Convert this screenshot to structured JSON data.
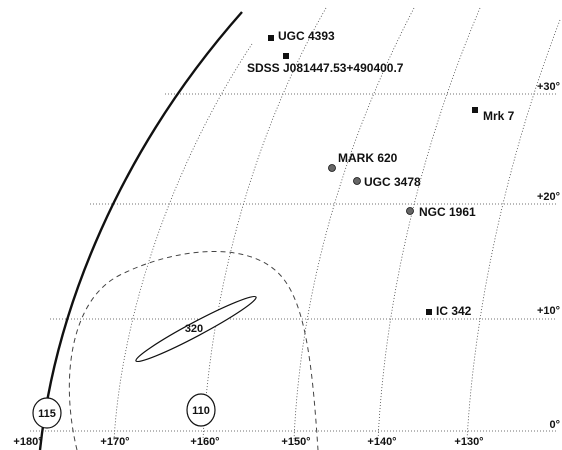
{
  "map": {
    "latitude_labels": [
      "+30°",
      "+20°",
      "+10°",
      "0°"
    ],
    "longitude_labels": [
      "+180°",
      "+170°",
      "+160°",
      "+150°",
      "+140°",
      "+130°"
    ],
    "objects": [
      {
        "name": "UGC 4393",
        "marker": "square"
      },
      {
        "name": "SDSS J081447.53+490400.7",
        "marker": "square"
      },
      {
        "name": "Mrk 7",
        "marker": "square"
      },
      {
        "name": "MARK 620",
        "marker": "circle"
      },
      {
        "name": "UGC 3478",
        "marker": "circle"
      },
      {
        "name": "NGC 1961",
        "marker": "circle"
      },
      {
        "name": "IC 342",
        "marker": "square"
      }
    ],
    "regions": [
      {
        "label": "320",
        "shape": "ellipse"
      },
      {
        "label": "110",
        "shape": "circle"
      },
      {
        "label": "115",
        "shape": "circle"
      }
    ],
    "colors": {
      "ink": "#111111",
      "grid": "#444444",
      "marker_circle": "#666666"
    }
  }
}
